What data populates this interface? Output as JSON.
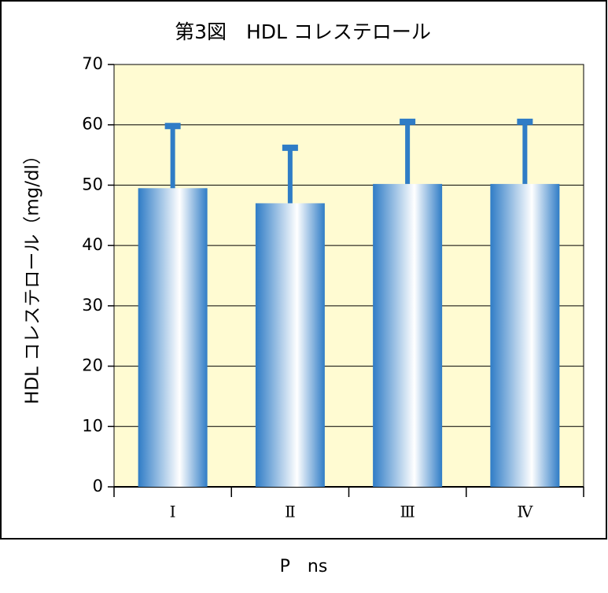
{
  "chart_data": {
    "type": "bar",
    "title": "第3図　HDL コレステロール",
    "y_label": "HDL コレステロール（mg/dl）",
    "note": "P　ns",
    "categories": [
      "Ⅰ",
      "Ⅱ",
      "Ⅲ",
      "Ⅳ"
    ],
    "values": [
      49.5,
      47.0,
      50.2,
      50.2
    ],
    "errors": [
      10.3,
      9.2,
      10.3,
      10.3
    ],
    "color": "#2f7cc6",
    "background": "#fffbd2",
    "ylim": [
      0,
      70
    ],
    "yticks": [
      0,
      10,
      20,
      30,
      40,
      50,
      60,
      70
    ],
    "grid": true
  }
}
